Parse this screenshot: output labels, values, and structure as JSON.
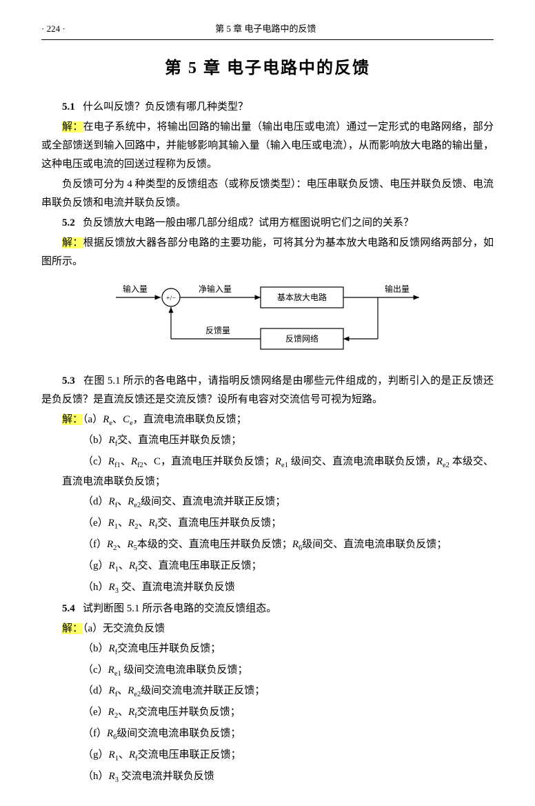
{
  "header": {
    "page_num": "· 224 ·",
    "running_title": "第 5 章  电子电路中的反馈"
  },
  "chapter_title": "第 5 章   电子电路中的反馈",
  "q51": {
    "number": "5.1",
    "question": "什么叫反馈？负反馈有哪几种类型？",
    "solution_label": "解：",
    "solution_p1": "在电子系统中，将输出回路的输出量（输出电压或电流）通过一定形式的电路网络，部分或全部馈送到输入回路中，并能够影响其输入量（输入电压或电流），从而影响放大电路的输出量，这种电压或电流的回送过程称为反馈。",
    "solution_p2": "负反馈可分为 4 种类型的反馈组态（或称反馈类型）：电压串联负反馈、电压并联负反馈、电流串联负反馈和电流并联负反馈。"
  },
  "q52": {
    "number": "5.2",
    "question": "负反馈放大电路一般由哪几部分组成？试用方框图说明它们之间的关系？",
    "solution_label": "解：",
    "solution_text": "根据反馈放大器各部分电路的主要功能，可将其分为基本放大电路和反馈网络两部分，如图所示。"
  },
  "diagram": {
    "input_label": "输入量",
    "net_input_label": "净输入量",
    "output_label": "输出量",
    "feedback_label": "反馈量",
    "amp_box": "基本放大电路",
    "fb_box": "反馈网络",
    "sum_symbol": "+/−",
    "colors": {
      "stroke": "#000000",
      "fill": "#ffffff",
      "text": "#000000"
    },
    "line_width": 1.2,
    "font_size": 12
  },
  "q53": {
    "number": "5.3",
    "question": "在图 5.1 所示的各电路中，请指明反馈网络是由哪些元件组成的，判断引入的是正反馈还是负反馈？是直流反馈还是交流反馈？设所有电容对交流信号可视为短路。",
    "solution_label": "解：",
    "items": {
      "a": "（a）<span class='italic'>R</span><sub>e</sub>、<span class='italic'>C</span><sub>e</sub>，直流电流串联负反馈；",
      "b": "（b）<span class='italic'>R</span><sub>f</sub>交、直流电压并联负反馈；",
      "c": "（c）<span class='italic'>R</span><sub>f1</sub>、<span class='italic'>R</span><sub>f2</sub>、C，直流电压并联负反馈；<span class='italic'>R</span><sub>e1</sub> 级间交、直流电流串联负反馈，<span class='italic'>R</span><sub>e2</sub> 本级交、直流电流串联负反馈；",
      "d": "（d）<span class='italic'>R</span><sub>f</sub>、<span class='italic'>R</span><sub>e2</sub>级间交、直流电流并联正反馈；",
      "e": "（e）<span class='italic'>R</span><sub>1</sub>、<span class='italic'>R</span><sub>2</sub>、<span class='italic'>R</span><sub>f</sub>交、直流电压并联负反馈；",
      "f": "（f）<span class='italic'>R</span><sub>2</sub>、<span class='italic'>R</span><sub>5</sub>本级的交、直流电压并联负反馈；<span class='italic'>R</span><sub>6</sub>级间交、直流电流串联负反馈；",
      "g": "（g）<span class='italic'>R</span><sub>1</sub>、<span class='italic'>R</span><sub>f</sub>交、直流电压串联正反馈；",
      "h": "（h）<span class='italic'>R</span><sub>3</sub> 交、直流电流并联负反馈"
    }
  },
  "q54": {
    "number": "5.4",
    "question": "试判断图 5.1 所示各电路的交流反馈组态。",
    "solution_label": "解：",
    "items": {
      "a": "（a）无交流负反馈",
      "b": "（b）<span class='italic'>R</span><sub>f</sub>交流电压并联负反馈；",
      "c": "（c）<span class='italic'>R</span><sub>e1</sub> 级间交流电流串联负反馈；",
      "d": "（d）<span class='italic'>R</span><sub>f</sub>、<span class='italic'>R</span><sub>e2</sub>级间交流电流并联正反馈；",
      "e": "（e）<span class='italic'>R</span><sub>2</sub>、<span class='italic'>R</span><sub>f</sub>交流电压并联负反馈；",
      "f": "（f）<span class='italic'>R</span><sub>6</sub>级间交流电流串联负反馈；",
      "g": "（g）<span class='italic'>R</span><sub>1</sub>、<span class='italic'>R</span><sub>f</sub>交流电压串联正反馈；",
      "h": "（h）<span class='italic'>R</span><sub>3</sub> 交流电流并联负反馈"
    }
  }
}
